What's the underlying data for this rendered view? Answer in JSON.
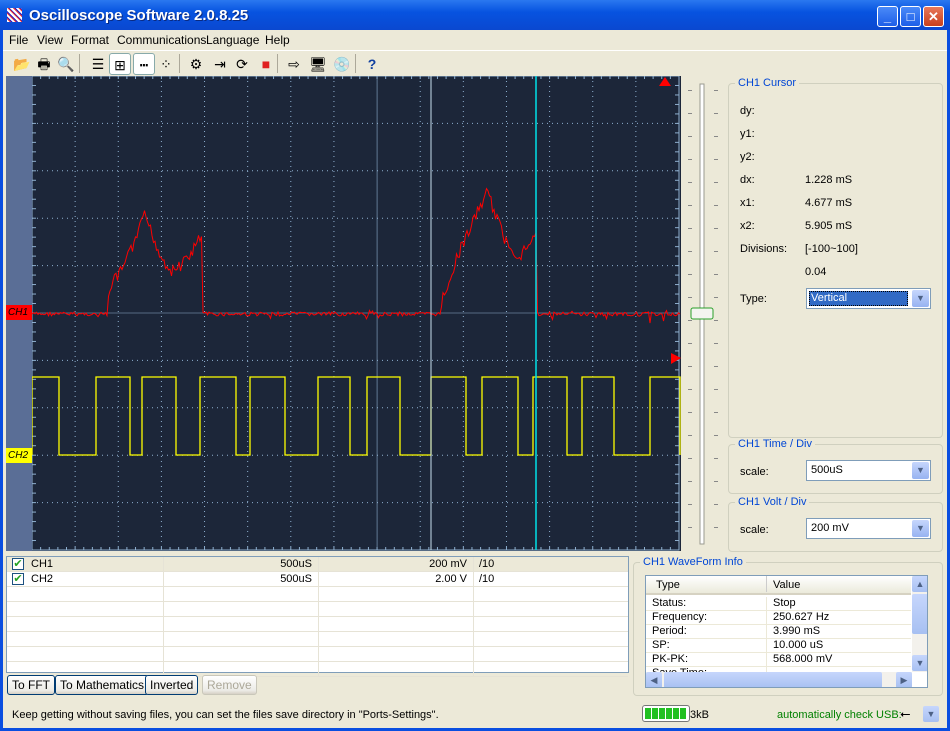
{
  "window": {
    "title": "Oscilloscope Software 2.0.8.25",
    "minimize": "_",
    "maximize": "□",
    "close": "✕"
  },
  "menu": [
    "File",
    "View",
    "Format",
    "Communications",
    "Language",
    "Help"
  ],
  "toolbar": [
    {
      "icon": "open-folder-icon",
      "glyph": "📂"
    },
    {
      "icon": "print-icon",
      "glyph": "🖶"
    },
    {
      "icon": "print-preview-icon",
      "glyph": "🔍"
    },
    {
      "icon": "list-icon",
      "glyph": "☰"
    },
    {
      "icon": "grid-icon",
      "glyph": "⊞",
      "active": true
    },
    {
      "icon": "dotted-line-icon",
      "glyph": "┅",
      "active": true
    },
    {
      "icon": "points-icon",
      "glyph": "⁘"
    },
    {
      "icon": "settings-gears-icon",
      "glyph": "⚙"
    },
    {
      "icon": "import-icon",
      "glyph": "⇥"
    },
    {
      "icon": "refresh-icon",
      "glyph": "⟳"
    },
    {
      "icon": "stop-icon",
      "glyph": "■"
    },
    {
      "icon": "export-icon",
      "glyph": "⇨"
    },
    {
      "icon": "monitor-icon",
      "glyph": "🖥"
    },
    {
      "icon": "device-icon",
      "glyph": "💿"
    },
    {
      "icon": "help-icon",
      "glyph": "?"
    }
  ],
  "scope": {
    "ch1_label": "CH1",
    "ch2_label": "CH2",
    "ch1_color": "#ff0000",
    "ch2_color": "#ffff00",
    "background": "#1c2639",
    "cursor1_color": "#c8e0f0",
    "cursor2_color": "#00e0e8",
    "h_divisions": 15,
    "v_divisions": 10
  },
  "cursor": {
    "title": "CH1 Cursor",
    "dy_label": "dy:",
    "y1_label": "y1:",
    "y2_label": "y2:",
    "dx_label": "dx:",
    "dx": "1.228 mS",
    "x1_label": "x1:",
    "x1": "4.677 mS",
    "x2_label": "x2:",
    "x2": "5.905 mS",
    "divisions_label": "Divisions:",
    "divisions_range": "[-100~100]",
    "divisions_value": "0.04",
    "type_label": "Type:",
    "type": "Vertical"
  },
  "time_div": {
    "title": "CH1 Time / Div",
    "scale_label": "scale:",
    "scale": "500uS"
  },
  "volt_div": {
    "title": "CH1 Volt / Div",
    "scale_label": "scale:",
    "scale": "200 mV"
  },
  "channels": [
    {
      "name": "CH1",
      "checked": true,
      "time": "500uS",
      "volt": "200 mV",
      "probe": "/10"
    },
    {
      "name": "CH2",
      "checked": true,
      "time": "500uS",
      "volt": "2.00 V",
      "probe": "/10"
    }
  ],
  "buttons": {
    "fft": "To FFT",
    "math": "To Mathematics",
    "inverted": "Inverted",
    "remove": "Remove"
  },
  "waveform_info": {
    "title": "CH1 WaveForm Info",
    "col_type": "Type",
    "col_value": "Value",
    "rows": [
      {
        "type": "Status:",
        "value": "Stop"
      },
      {
        "type": "Frequency:",
        "value": "250.627 Hz"
      },
      {
        "type": "Period:",
        "value": "3.990 mS"
      },
      {
        "type": "SP:",
        "value": "10.000 uS"
      },
      {
        "type": "PK-PK:",
        "value": "568.000 mV"
      },
      {
        "type": "Save Time:",
        "value": ""
      }
    ]
  },
  "status": {
    "message": "Keep getting without saving files, you can set the files save directory in \"Ports-Settings\".",
    "buffer": "3kB",
    "buffer_level": 1.0,
    "usb": "automatically check USB:",
    "usb_color": "#008000"
  }
}
